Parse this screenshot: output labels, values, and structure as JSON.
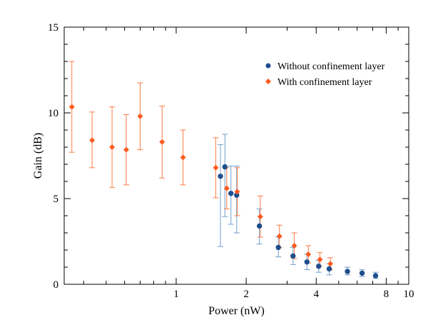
{
  "chart_data": {
    "type": "scatter",
    "xlabel": "Power (nW)",
    "ylabel": "Gain (dB)",
    "x_scale": "log",
    "xlim": [
      0.33,
      10
    ],
    "ylim": [
      0,
      15
    ],
    "x_ticks": [
      1,
      2,
      4,
      8,
      10
    ],
    "y_ticks": [
      0,
      5,
      10,
      15
    ],
    "grid": false,
    "legend_position": "top-right",
    "series": [
      {
        "name": "Without confinement layer",
        "marker": "circle",
        "color": "#1f4e8c",
        "errorbar_color": "#6f9fcf",
        "points": [
          {
            "x": 1.55,
            "y": 6.3,
            "err_low": 4.1,
            "err_high": 1.85
          },
          {
            "x": 1.62,
            "y": 6.85,
            "err_low": 2.9,
            "err_high": 1.9
          },
          {
            "x": 1.72,
            "y": 5.3,
            "err_low": 1.8,
            "err_high": 1.6
          },
          {
            "x": 1.82,
            "y": 5.2,
            "err_low": 2.2,
            "err_high": 1.7
          },
          {
            "x": 2.28,
            "y": 3.4,
            "err_low": 1.05,
            "err_high": 1.0
          },
          {
            "x": 2.75,
            "y": 2.15,
            "err_low": 0.55,
            "err_high": 0.6
          },
          {
            "x": 3.18,
            "y": 1.65,
            "err_low": 0.5,
            "err_high": 0.5
          },
          {
            "x": 3.65,
            "y": 1.3,
            "err_low": 0.45,
            "err_high": 0.45
          },
          {
            "x": 4.1,
            "y": 1.05,
            "err_low": 0.35,
            "err_high": 0.35
          },
          {
            "x": 4.55,
            "y": 0.9,
            "err_low": 0.35,
            "err_high": 0.3
          },
          {
            "x": 5.45,
            "y": 0.75,
            "err_low": 0.2,
            "err_high": 0.25
          },
          {
            "x": 6.3,
            "y": 0.65,
            "err_low": 0.2,
            "err_high": 0.2
          },
          {
            "x": 7.2,
            "y": 0.5,
            "err_low": 0.15,
            "err_high": 0.2
          }
        ]
      },
      {
        "name": "With confinement layer",
        "marker": "diamond",
        "color": "#ff5a1f",
        "errorbar_color": "#ff7a45",
        "points": [
          {
            "x": 0.356,
            "y": 10.35,
            "err_low": 2.65,
            "err_high": 2.65
          },
          {
            "x": 0.435,
            "y": 8.4,
            "err_low": 1.6,
            "err_high": 1.65
          },
          {
            "x": 0.53,
            "y": 8.0,
            "err_low": 2.35,
            "err_high": 2.35
          },
          {
            "x": 0.61,
            "y": 7.85,
            "err_low": 2.05,
            "err_high": 2.05
          },
          {
            "x": 0.7,
            "y": 9.8,
            "err_low": 1.95,
            "err_high": 1.95
          },
          {
            "x": 0.87,
            "y": 8.3,
            "err_low": 2.1,
            "err_high": 2.1
          },
          {
            "x": 1.07,
            "y": 7.4,
            "err_low": 1.6,
            "err_high": 1.6
          },
          {
            "x": 1.48,
            "y": 6.8,
            "err_low": 1.75,
            "err_high": 1.75
          },
          {
            "x": 1.65,
            "y": 5.6,
            "err_low": 1.2,
            "err_high": 1.2
          },
          {
            "x": 1.83,
            "y": 5.4,
            "err_low": 1.4,
            "err_high": 1.4
          },
          {
            "x": 2.3,
            "y": 3.95,
            "err_low": 1.2,
            "err_high": 1.2
          },
          {
            "x": 2.78,
            "y": 2.8,
            "err_low": 0.65,
            "err_high": 0.65
          },
          {
            "x": 3.22,
            "y": 2.25,
            "err_low": 0.75,
            "err_high": 0.75
          },
          {
            "x": 3.7,
            "y": 1.75,
            "err_low": 0.5,
            "err_high": 0.5
          },
          {
            "x": 4.15,
            "y": 1.45,
            "err_low": 0.4,
            "err_high": 0.4
          },
          {
            "x": 4.6,
            "y": 1.2,
            "err_low": 0.35,
            "err_high": 0.35
          }
        ]
      }
    ]
  }
}
